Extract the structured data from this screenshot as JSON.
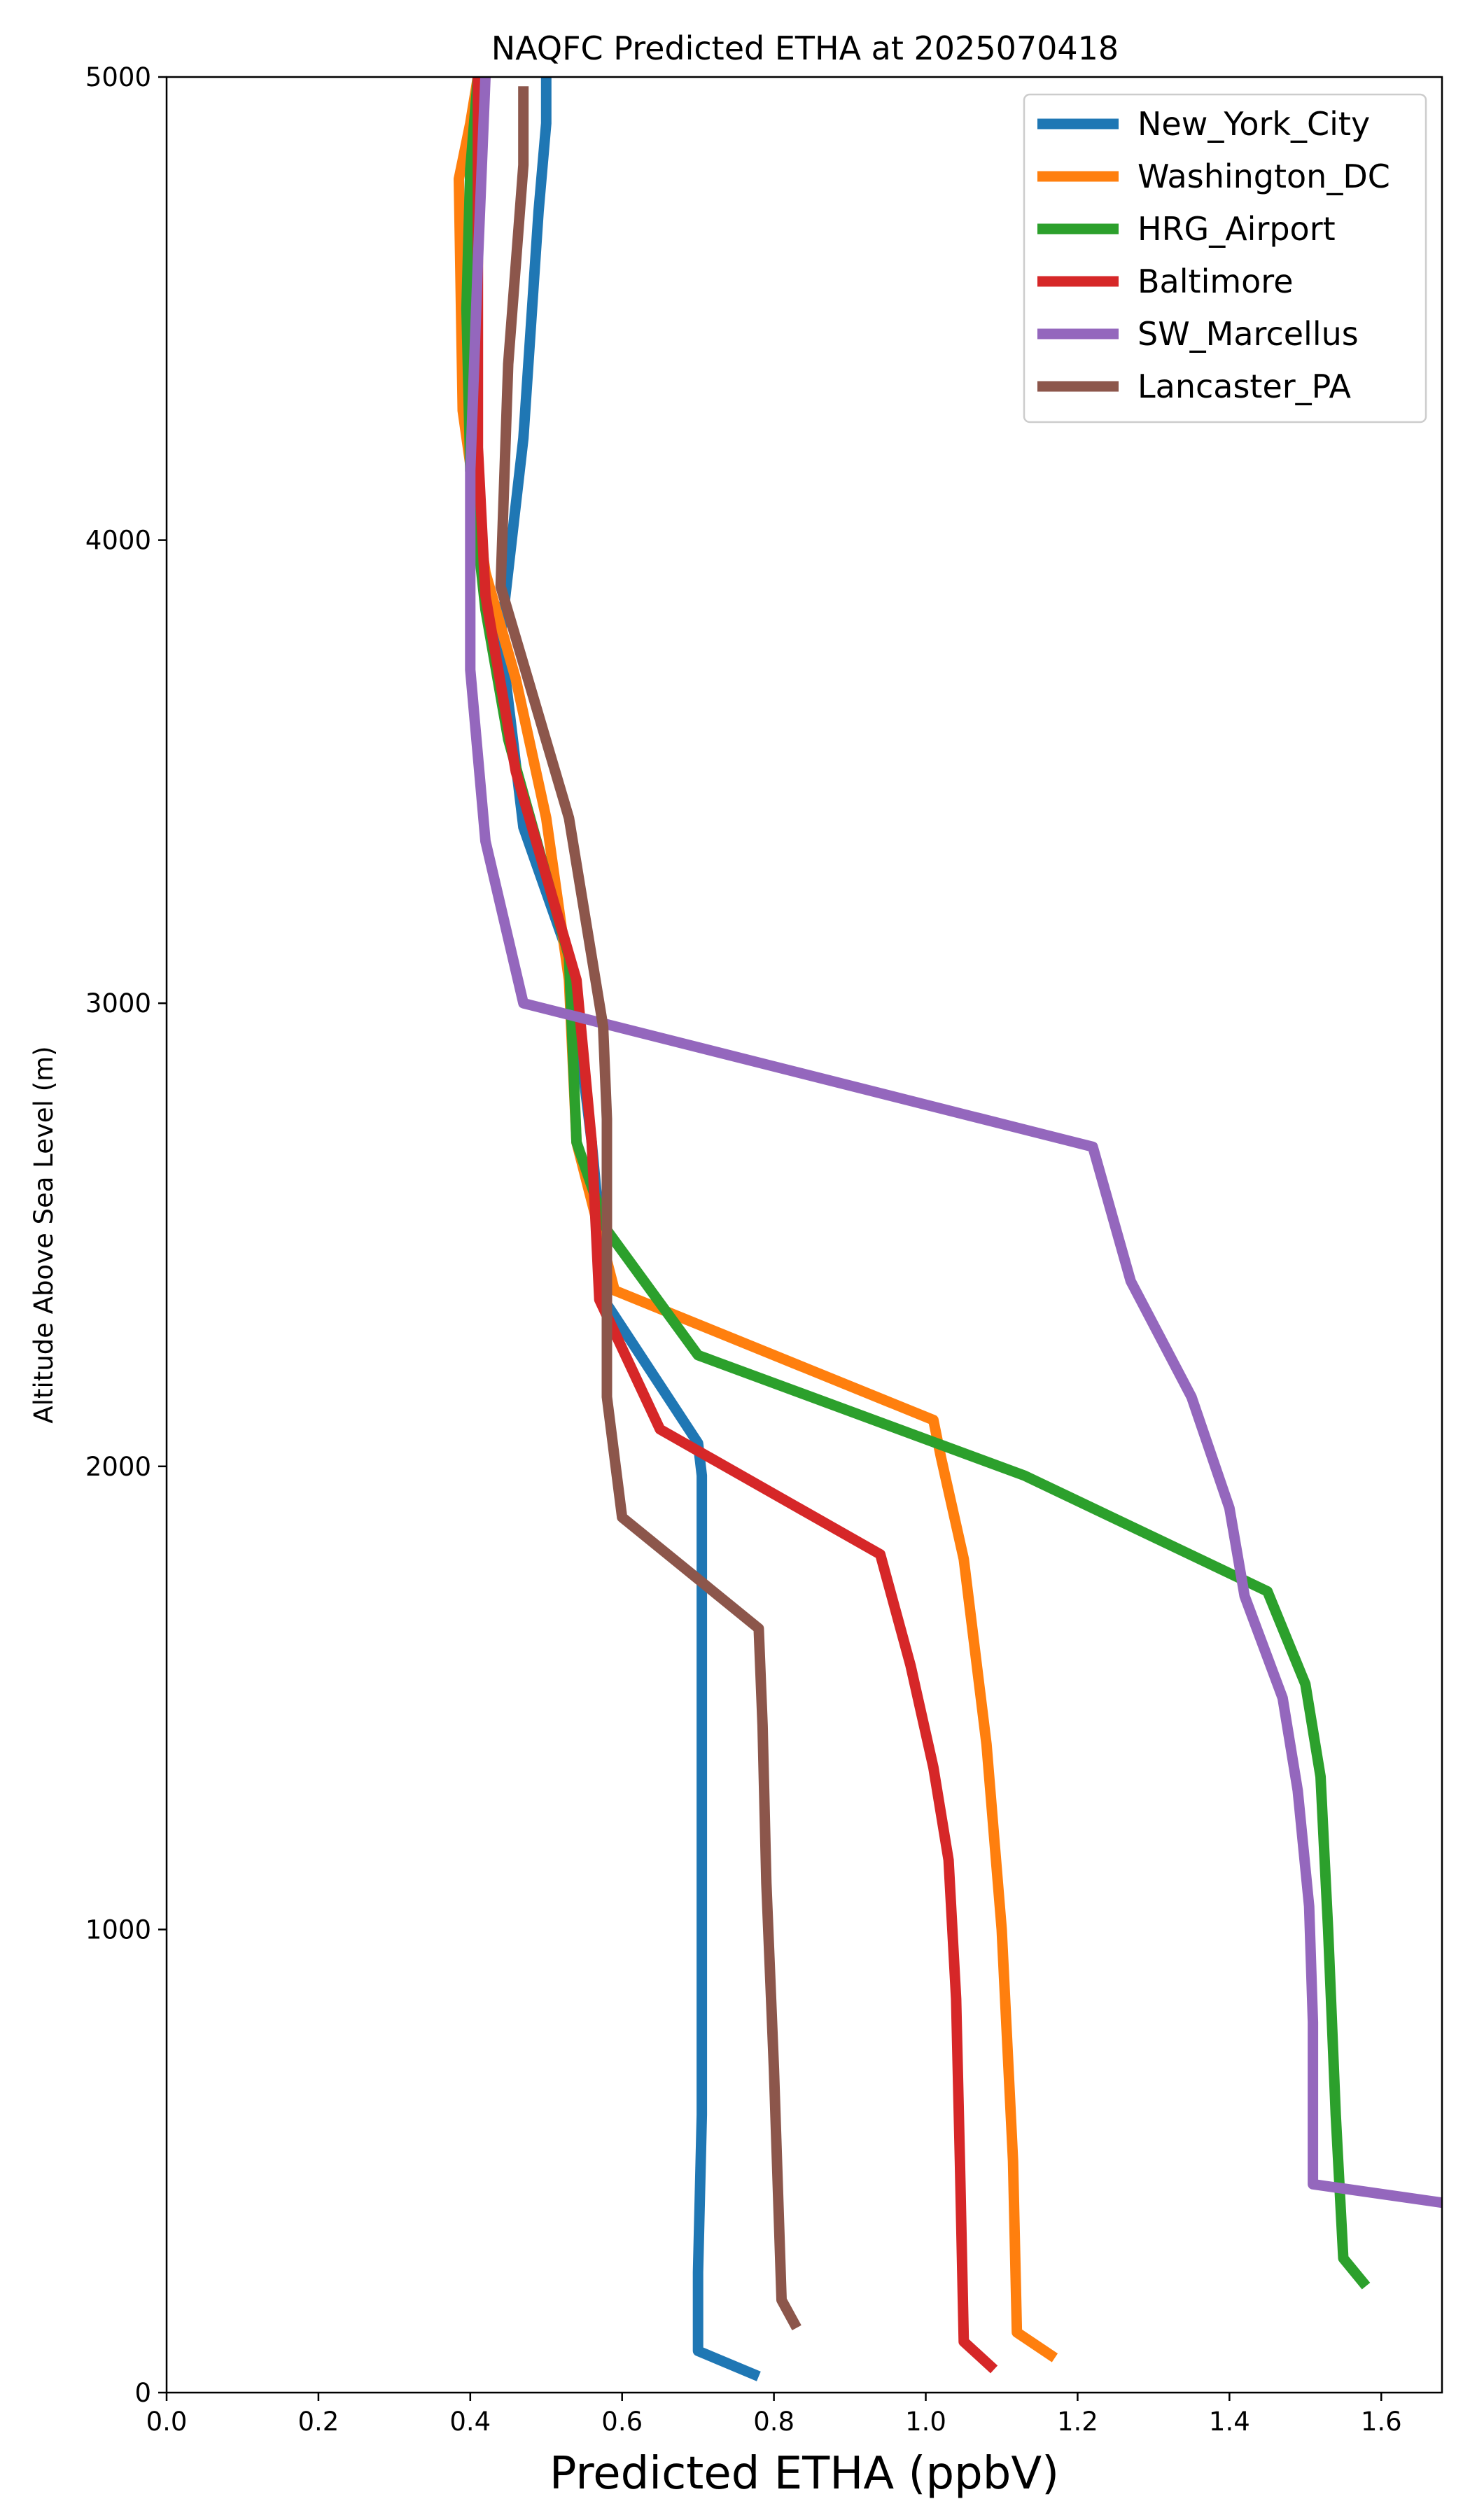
{
  "chart_data": {
    "type": "line",
    "title": "NAQFC Predicted ETHA at 2025070418",
    "xlabel": "Predicted ETHA (ppbV)",
    "ylabel": "Altitude Above Sea Level (m)",
    "xlim": [
      0.0,
      1.68
    ],
    "ylim": [
      0,
      5000
    ],
    "xticks": [
      "0.0",
      "0.2",
      "0.4",
      "0.6",
      "0.8",
      "1.0",
      "1.2",
      "1.4",
      "1.6"
    ],
    "yticks": [
      "0",
      "1000",
      "2000",
      "3000",
      "4000",
      "5000"
    ],
    "grid": false,
    "legend_position": "top-right",
    "series": [
      {
        "name": "New_York_City",
        "color": "#1f77b4",
        "x": [
          0.78,
          0.7,
          0.7,
          0.705,
          0.705,
          0.705,
          0.705,
          0.705,
          0.7,
          0.58,
          0.56,
          0.53,
          0.47,
          0.44,
          0.47,
          0.49,
          0.5,
          0.5
        ],
        "y": [
          35,
          90,
          260,
          600,
          1000,
          1400,
          1800,
          1980,
          2050,
          2350,
          2700,
          3100,
          3380,
          3790,
          4220,
          4710,
          4900,
          5000
        ]
      },
      {
        "name": "Washington_DC",
        "color": "#ff7f0e",
        "x": [
          1.17,
          1.12,
          1.115,
          1.1,
          1.08,
          1.05,
          1.02,
          1.01,
          0.59,
          0.54,
          0.53,
          0.5,
          0.46,
          0.42,
          0.39,
          0.385,
          0.4,
          0.41
        ],
        "y": [
          75,
          130,
          500,
          1000,
          1400,
          1800,
          2020,
          2100,
          2380,
          2700,
          3050,
          3400,
          3700,
          3930,
          4280,
          4780,
          4900,
          5000
        ]
      },
      {
        "name": "HRG_Airport",
        "color": "#2ca02c",
        "x": [
          1.58,
          1.55,
          1.54,
          1.53,
          1.52,
          1.5,
          1.45,
          1.13,
          0.7,
          0.58,
          0.54,
          0.53,
          0.45,
          0.42,
          0.4,
          0.395,
          0.4,
          0.41
        ],
        "y": [
          230,
          290,
          600,
          1000,
          1330,
          1530,
          1730,
          1980,
          2240,
          2510,
          2700,
          3100,
          3570,
          3850,
          4150,
          4500,
          4800,
          5000
        ]
      },
      {
        "name": "Baltimore",
        "color": "#d62728",
        "x": [
          1.09,
          1.05,
          1.045,
          1.04,
          1.03,
          1.01,
          0.98,
          0.94,
          0.65,
          0.57,
          0.56,
          0.54,
          0.46,
          0.42,
          0.41,
          0.41,
          0.41,
          0.41
        ],
        "y": [
          50,
          110,
          500,
          850,
          1150,
          1350,
          1570,
          1810,
          2080,
          2360,
          2700,
          3050,
          3500,
          3880,
          4200,
          4600,
          4900,
          5000
        ]
      },
      {
        "name": "SW_Marcellus",
        "color": "#9467bd",
        "x": [
          1.68,
          1.51,
          1.51,
          1.51,
          1.505,
          1.49,
          1.47,
          1.42,
          1.4,
          1.35,
          1.27,
          1.22,
          0.47,
          0.42,
          0.4,
          0.4,
          0.41,
          0.42
        ],
        "y": [
          410,
          450,
          500,
          800,
          1050,
          1300,
          1500,
          1720,
          1910,
          2150,
          2400,
          2690,
          3000,
          3350,
          3720,
          4150,
          4600,
          5000
        ]
      },
      {
        "name": "Lancaster_PA",
        "color": "#8c564b",
        "x": [
          0.83,
          0.81,
          0.8,
          0.79,
          0.785,
          0.78,
          0.6,
          0.58,
          0.58,
          0.58,
          0.58,
          0.575,
          0.56,
          0.53,
          0.44,
          0.45,
          0.47,
          0.47
        ],
        "y": [
          140,
          200,
          700,
          1100,
          1440,
          1650,
          1890,
          2150,
          2400,
          2600,
          2750,
          2950,
          3100,
          3400,
          3900,
          4380,
          4810,
          4980
        ]
      }
    ]
  }
}
